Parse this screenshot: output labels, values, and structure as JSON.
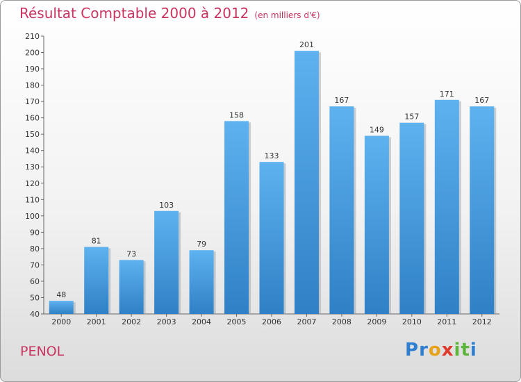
{
  "chart_data": {
    "type": "bar",
    "title": "Résultat Comptable 2000 à 2012",
    "subtitle": "(en milliers d'€)",
    "categories": [
      "2000",
      "2001",
      "2002",
      "2003",
      "2004",
      "2005",
      "2006",
      "2007",
      "2008",
      "2009",
      "2010",
      "2011",
      "2012"
    ],
    "values": [
      48,
      81,
      73,
      103,
      79,
      158,
      133,
      201,
      167,
      149,
      157,
      171,
      167
    ],
    "ylim": [
      40,
      210
    ],
    "yticks": [
      40,
      50,
      60,
      70,
      80,
      90,
      100,
      110,
      120,
      130,
      140,
      150,
      160,
      170,
      180,
      190,
      200,
      210
    ],
    "grid": false,
    "bar_color": "#4a9fe0"
  },
  "commune": "PENOL",
  "logo": {
    "letters": [
      "P",
      "r",
      "o",
      "x",
      "i",
      "t",
      "i"
    ],
    "colors": [
      "#2f7fd1",
      "#2f7fd1",
      "#e8a21a",
      "#e03a2f",
      "#5db53b",
      "#5db53b",
      "#2f7fd1"
    ]
  }
}
